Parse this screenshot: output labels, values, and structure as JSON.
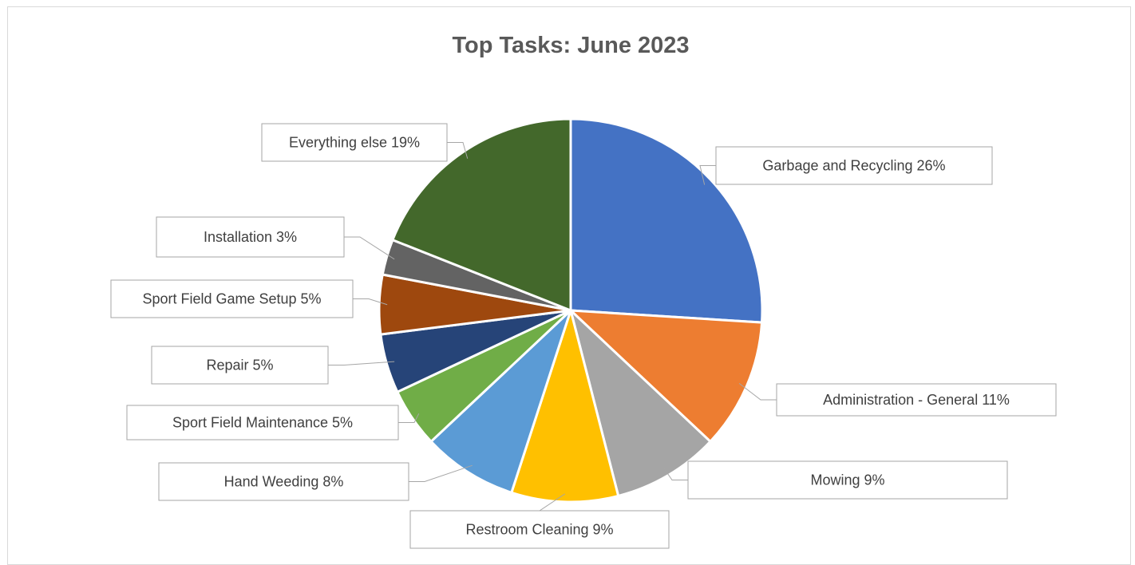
{
  "chart_data": {
    "type": "pie",
    "title": "Top Tasks: June 2023",
    "slices": [
      {
        "label": "Garbage and Recycling",
        "value": 26,
        "display": "Garbage and Recycling 26%",
        "color": "#4472C4"
      },
      {
        "label": "Administration - General",
        "value": 11,
        "display": "Administration - General 11%",
        "color": "#ED7D31"
      },
      {
        "label": "Mowing",
        "value": 9,
        "display": "Mowing 9%",
        "color": "#A5A5A5"
      },
      {
        "label": "Restroom Cleaning",
        "value": 9,
        "display": "Restroom Cleaning 9%",
        "color": "#FFC000"
      },
      {
        "label": "Hand Weeding",
        "value": 8,
        "display": "Hand Weeding 8%",
        "color": "#5B9BD5"
      },
      {
        "label": "Sport Field Maintenance",
        "value": 5,
        "display": "Sport Field Maintenance 5%",
        "color": "#70AD47"
      },
      {
        "label": "Repair",
        "value": 5,
        "display": "Repair 5%",
        "color": "#264478"
      },
      {
        "label": "Sport Field Game Setup",
        "value": 5,
        "display": "Sport Field Game Setup 5%",
        "color": "#9E480E"
      },
      {
        "label": "Installation",
        "value": 3,
        "display": "Installation 3%",
        "color": "#636363"
      },
      {
        "label": "Everything else",
        "value": 19,
        "display": "Everything else 19%",
        "color": "#43682B"
      }
    ],
    "legend": "none",
    "data_labels": "outside-callout"
  }
}
